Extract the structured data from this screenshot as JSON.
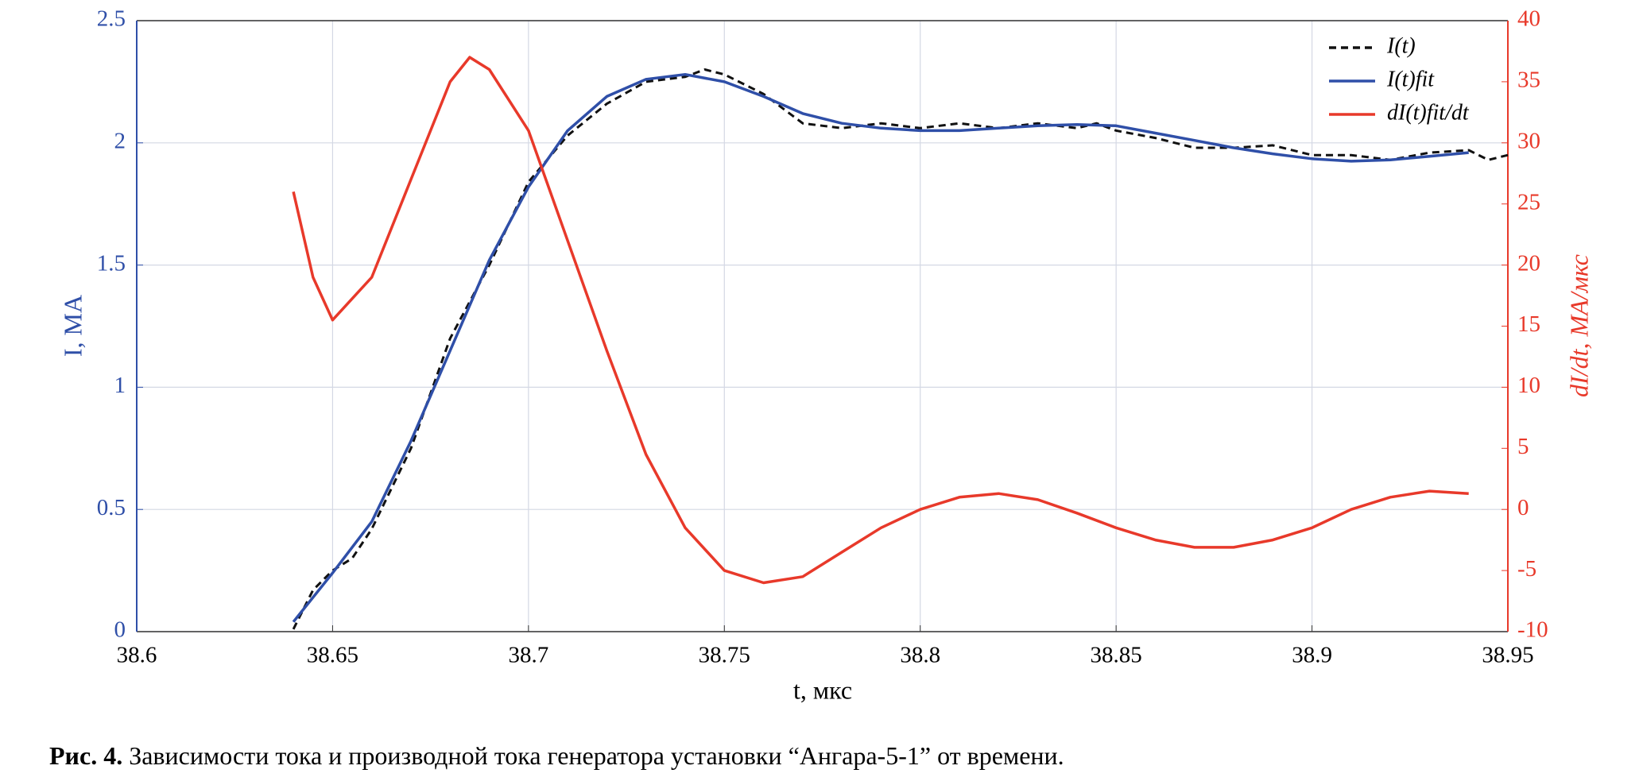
{
  "chart_data": {
    "type": "line",
    "xlabel": "t, мкс",
    "ylabel": "I, МА",
    "y2label": "dI/dt, МА/мкс",
    "xlim": [
      38.6,
      38.95
    ],
    "xticks": [
      38.6,
      38.65,
      38.7,
      38.75,
      38.8,
      38.85,
      38.9,
      38.95
    ],
    "ylim": [
      0,
      2.5
    ],
    "yticks": [
      0,
      0.5,
      1,
      1.5,
      2,
      2.5
    ],
    "y2lim": [
      -10,
      40
    ],
    "y2ticks": [
      -10,
      -5,
      0,
      5,
      10,
      15,
      20,
      25,
      30,
      35,
      40
    ],
    "grid": true,
    "legend": "upper right",
    "series": [
      {
        "name": "I(t)",
        "color": "#111111",
        "dash": true,
        "x": [
          38.64,
          38.645,
          38.65,
          38.655,
          38.66,
          38.67,
          38.68,
          38.69,
          38.7,
          38.71,
          38.72,
          38.73,
          38.74,
          38.745,
          38.75,
          38.76,
          38.77,
          38.78,
          38.79,
          38.8,
          38.81,
          38.82,
          38.83,
          38.84,
          38.845,
          38.85,
          38.86,
          38.87,
          38.88,
          38.89,
          38.9,
          38.91,
          38.92,
          38.93,
          38.94,
          38.945,
          38.95
        ],
        "values": [
          0.01,
          0.17,
          0.25,
          0.3,
          0.42,
          0.75,
          1.2,
          1.5,
          1.84,
          2.03,
          2.16,
          2.25,
          2.27,
          2.3,
          2.28,
          2.2,
          2.08,
          2.06,
          2.08,
          2.06,
          2.08,
          2.06,
          2.08,
          2.06,
          2.08,
          2.05,
          2.02,
          1.98,
          1.98,
          1.99,
          1.95,
          1.95,
          1.93,
          1.96,
          1.97,
          1.93,
          1.95
        ]
      },
      {
        "name": "I(t)fit",
        "color": "#2f4fa8",
        "x": [
          38.64,
          38.65,
          38.66,
          38.67,
          38.68,
          38.69,
          38.7,
          38.71,
          38.72,
          38.73,
          38.74,
          38.75,
          38.76,
          38.77,
          38.78,
          38.79,
          38.8,
          38.81,
          38.82,
          38.83,
          38.84,
          38.85,
          38.86,
          38.87,
          38.88,
          38.89,
          38.9,
          38.91,
          38.92,
          38.93,
          38.94
        ],
        "values": [
          0.04,
          0.24,
          0.45,
          0.78,
          1.15,
          1.52,
          1.82,
          2.05,
          2.19,
          2.26,
          2.28,
          2.25,
          2.19,
          2.12,
          2.08,
          2.06,
          2.05,
          2.05,
          2.06,
          2.07,
          2.075,
          2.07,
          2.04,
          2.01,
          1.98,
          1.955,
          1.935,
          1.925,
          1.93,
          1.945,
          1.96
        ]
      },
      {
        "name": "dI(t)fit/dt",
        "color": "#e8392a",
        "axis": "y2",
        "x": [
          38.64,
          38.645,
          38.65,
          38.66,
          38.67,
          38.68,
          38.685,
          38.69,
          38.7,
          38.71,
          38.72,
          38.73,
          38.74,
          38.75,
          38.76,
          38.77,
          38.78,
          38.79,
          38.8,
          38.81,
          38.82,
          38.83,
          38.84,
          38.85,
          38.86,
          38.87,
          38.88,
          38.89,
          38.9,
          38.91,
          38.92,
          38.93,
          38.94
        ],
        "values": [
          26,
          19,
          15.5,
          19,
          27,
          35,
          37,
          36,
          31,
          22,
          13,
          4.5,
          -1.5,
          -5,
          -6,
          -5.5,
          -3.5,
          -1.5,
          0,
          1,
          1.3,
          0.8,
          -0.3,
          -1.5,
          -2.5,
          -3.1,
          -3.1,
          -2.5,
          -1.5,
          0,
          1,
          1.5,
          1.3
        ]
      }
    ]
  },
  "caption": {
    "label": "Рис. 4.",
    "text": "Зависимости тока и производной тока генератора установки “Ангара-5-1” от времени."
  }
}
